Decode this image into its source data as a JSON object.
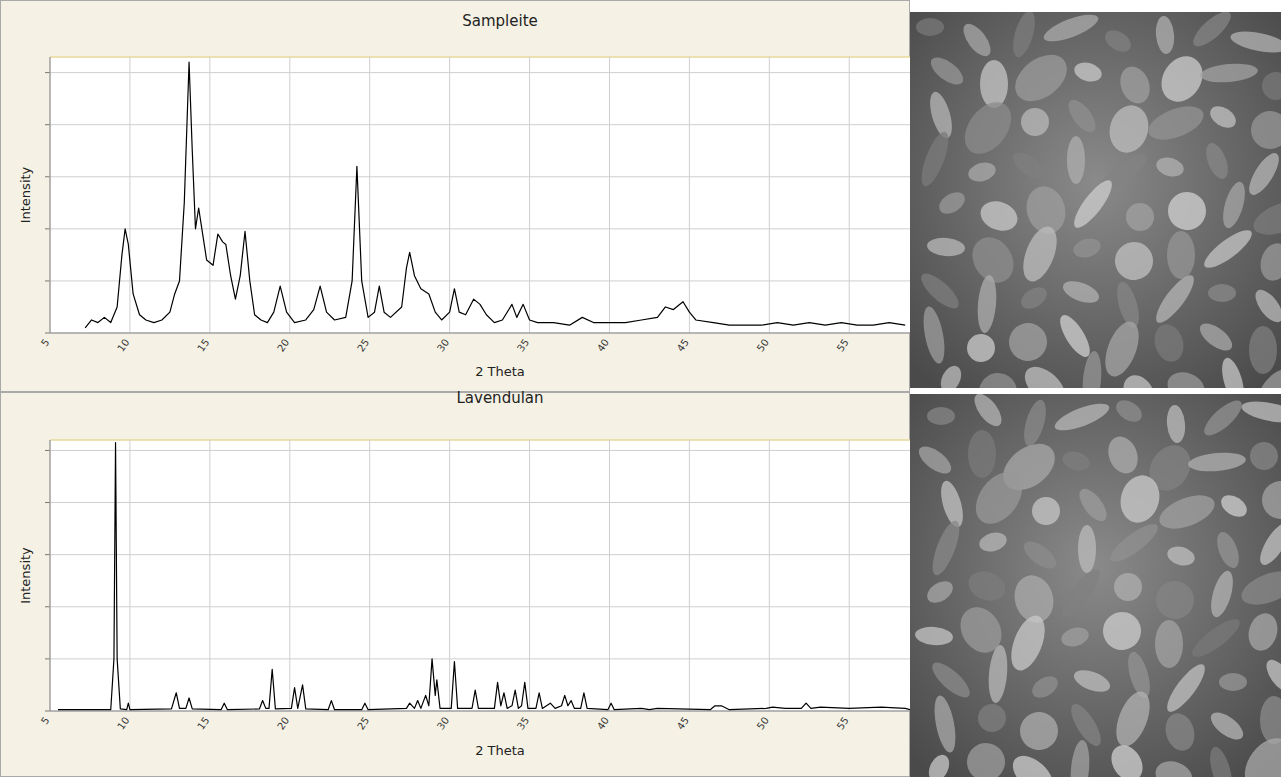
{
  "chart_data": [
    {
      "type": "line",
      "title": "Sampleite",
      "x_label": "2 Theta",
      "y_label": "Intensity",
      "color": "#000000",
      "grid": true,
      "tick_labels": "x",
      "xlim": [
        5,
        58.8
      ],
      "xticks": [
        5,
        10,
        15,
        20,
        25,
        30,
        35,
        40,
        45,
        50,
        55
      ],
      "ylim": [
        0,
        106
      ],
      "yticks": [
        0,
        20,
        40,
        60,
        80,
        100
      ],
      "x": [
        7.2,
        7.6,
        8.0,
        8.4,
        8.8,
        9.2,
        9.5,
        9.7,
        9.9,
        10.2,
        10.6,
        11.0,
        11.5,
        12.0,
        12.5,
        12.8,
        13.1,
        13.4,
        13.7,
        13.9,
        14.1,
        14.3,
        14.5,
        14.8,
        15.2,
        15.5,
        15.8,
        16.0,
        16.3,
        16.6,
        16.9,
        17.2,
        17.5,
        17.8,
        18.2,
        18.6,
        19.0,
        19.4,
        19.8,
        20.3,
        21.0,
        21.5,
        21.9,
        22.3,
        22.8,
        23.5,
        23.9,
        24.2,
        24.5,
        24.9,
        25.3,
        25.6,
        25.9,
        26.3,
        27.0,
        27.3,
        27.5,
        27.8,
        28.2,
        28.7,
        29.1,
        29.5,
        30.0,
        30.3,
        30.6,
        31.0,
        31.5,
        31.9,
        32.3,
        32.8,
        33.3,
        33.9,
        34.2,
        34.6,
        35.0,
        35.5,
        36.5,
        37.5,
        38.3,
        39.0,
        40.0,
        41.0,
        42.0,
        43.0,
        43.5,
        44.0,
        44.6,
        45.0,
        45.4,
        46.5,
        47.5,
        48.5,
        49.5,
        50.5,
        51.5,
        52.5,
        53.5,
        54.5,
        55.5,
        56.5,
        57.5,
        58.5
      ],
      "values": [
        2,
        5,
        4,
        6,
        4,
        10,
        30,
        40,
        34,
        15,
        7,
        5,
        4,
        5,
        8,
        15,
        20,
        50,
        104,
        70,
        40,
        48,
        40,
        28,
        26,
        38,
        35,
        34,
        22,
        13,
        22,
        39,
        20,
        7,
        5,
        4,
        8,
        18,
        8,
        4,
        5,
        9,
        18,
        8,
        5,
        6,
        20,
        64,
        20,
        6,
        8,
        18,
        8,
        6,
        10,
        25,
        31,
        22,
        17,
        15,
        8,
        5,
        8,
        17,
        8,
        7,
        13,
        11,
        7,
        4,
        5,
        11,
        6,
        11,
        5,
        4,
        4,
        3,
        6,
        4,
        4,
        4,
        5,
        6,
        10,
        9,
        12,
        8,
        5,
        4,
        3,
        3,
        3,
        4,
        3,
        4,
        3,
        4,
        3,
        3,
        4,
        3
      ]
    },
    {
      "type": "line",
      "title": "Lavendulan",
      "x_label": "2 Theta",
      "y_label": "Intensity",
      "color": "#000000",
      "grid": true,
      "tick_labels": "x",
      "xlim": [
        5,
        58.8
      ],
      "xticks": [
        5,
        10,
        15,
        20,
        25,
        30,
        35,
        40,
        45,
        50,
        55
      ],
      "ylim": [
        0,
        104
      ],
      "yticks": [
        0,
        20,
        40,
        60,
        80,
        100
      ],
      "x": [
        5.5,
        8.8,
        9.0,
        9.1,
        9.2,
        9.4,
        9.8,
        9.9,
        10.0,
        12.6,
        12.8,
        12.9,
        13.1,
        13.5,
        13.7,
        13.9,
        15.7,
        15.9,
        16.1,
        18.1,
        18.3,
        18.5,
        18.7,
        18.9,
        19.1,
        20.1,
        20.3,
        20.5,
        20.8,
        21.0,
        22.4,
        22.6,
        22.8,
        24.5,
        24.7,
        24.9,
        27.3,
        27.5,
        27.8,
        28.0,
        28.2,
        28.5,
        28.7,
        28.9,
        29.1,
        29.2,
        29.4,
        30.1,
        30.3,
        30.5,
        31.4,
        31.6,
        31.8,
        32.8,
        33.0,
        33.2,
        33.4,
        33.6,
        33.9,
        34.1,
        34.3,
        34.5,
        34.7,
        34.9,
        35.4,
        35.6,
        35.8,
        36.3,
        36.6,
        37.0,
        37.2,
        37.4,
        37.6,
        37.8,
        38.2,
        38.4,
        38.6,
        39.9,
        40.1,
        40.3,
        42.0,
        42.5,
        43.0,
        46.3,
        46.6,
        47.0,
        47.5,
        49.8,
        50.2,
        51.0,
        52.0,
        52.3,
        52.6,
        53.2,
        55.0,
        57.0,
        58.5,
        58.8
      ],
      "values": [
        0.5,
        0.5,
        20,
        103,
        20,
        0.8,
        0.5,
        3,
        0.5,
        0.8,
        5,
        7,
        1,
        1,
        5,
        0.8,
        0.5,
        3,
        0.5,
        0.8,
        4,
        1,
        1,
        16,
        0.8,
        1,
        9,
        1,
        10,
        0.8,
        0.5,
        4,
        0.5,
        0.5,
        3,
        0.5,
        1,
        3,
        1,
        4,
        1,
        6,
        2,
        20,
        6,
        12,
        1,
        1,
        19,
        1,
        1,
        8,
        1,
        1,
        11,
        2,
        7,
        1,
        2,
        8,
        1,
        2,
        11,
        1,
        1,
        7,
        1,
        3,
        1,
        2,
        6,
        2,
        4,
        1,
        1,
        7,
        1,
        0.5,
        3,
        0.5,
        1,
        0.5,
        1,
        0.5,
        2,
        2,
        0.5,
        1,
        1.5,
        1,
        1,
        3,
        1,
        1.5,
        1,
        1.5,
        1,
        0.5
      ]
    }
  ]
}
